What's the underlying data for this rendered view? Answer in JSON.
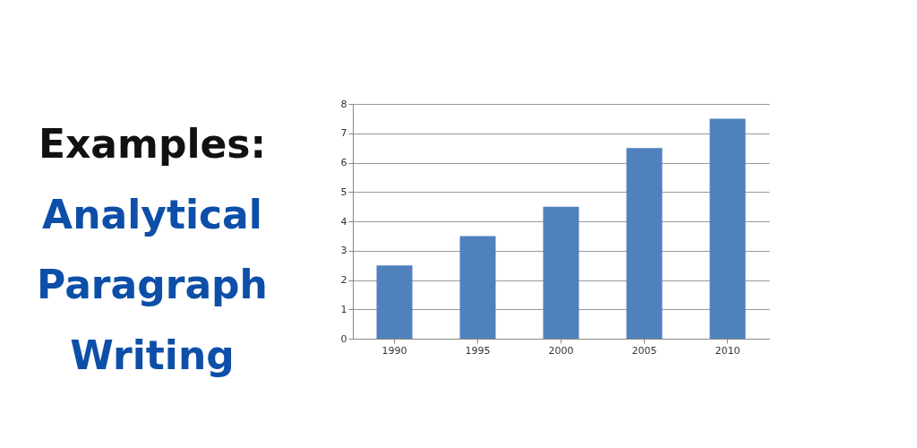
{
  "chart_data": {
    "type": "bar",
    "title": "Examples:",
    "subtitle": "Analytical Paragraph Writing",
    "categories": [
      "1990",
      "1995",
      "2000",
      "2005",
      "2010"
    ],
    "values": [
      2.5,
      3.5,
      4.5,
      6.5,
      7.5
    ],
    "color": "#4f81bd",
    "ylim": [
      0,
      8
    ],
    "yticks": [
      0,
      1,
      2,
      3,
      4,
      5,
      6,
      7,
      8
    ],
    "grid": "y"
  }
}
